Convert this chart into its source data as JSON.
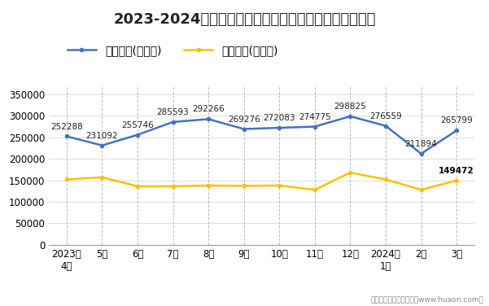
{
  "title": "2023-2024年南通市商品收发货人所在地进、出口额统计",
  "x_labels": [
    "2023年\n4月",
    "5月",
    "6月",
    "7月",
    "8月",
    "9月",
    "10月",
    "11月",
    "12月",
    "2024年\n1月",
    "2月",
    "3月"
  ],
  "export_values": [
    252288,
    231092,
    255746,
    285593,
    292266,
    269276,
    272083,
    274775,
    298825,
    276559,
    211894,
    265799
  ],
  "import_values": [
    152000,
    157000,
    136000,
    136000,
    138000,
    137000,
    138000,
    128000,
    168000,
    152000,
    128000,
    149472
  ],
  "export_label": "出口总额(万美元)",
  "import_label": "进口总额(万美元)",
  "export_color": "#4472C4",
  "import_color": "#FFC000",
  "ylim": [
    0,
    370000
  ],
  "yticks": [
    0,
    50000,
    100000,
    150000,
    200000,
    250000,
    300000,
    350000
  ],
  "footer": "制图：华经产业研究院（www.huaon.com）",
  "bg_color": "#FFFFFF",
  "plot_bg_color": "#FFFFFF",
  "grid_color": "#D0D0D0",
  "dashed_color": "#BBBBBB",
  "title_fontsize": 13,
  "legend_fontsize": 9.5,
  "annotation_fontsize": 7.5,
  "tick_fontsize": 8.5
}
